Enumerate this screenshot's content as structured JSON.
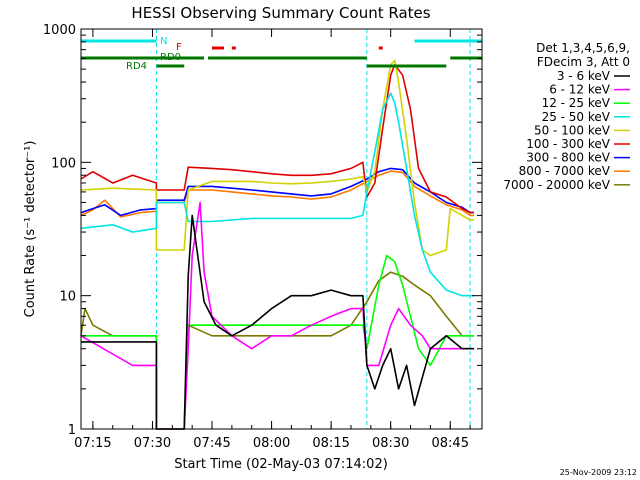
{
  "chart_data": {
    "type": "line",
    "title": "HESSI Observing Summary Count Rates",
    "ylabel": "Count Rate (s⁻¹ detector⁻¹)",
    "xlabel": "Start Time (02-May-03 07:14:02)",
    "y_scale": "log",
    "ylim": [
      1,
      1000
    ],
    "xlim": [
      "07:12",
      "08:53"
    ],
    "x_ticks": [
      {
        "t": "07:15",
        "label": "07:15"
      },
      {
        "t": "07:30",
        "label": "07:30"
      },
      {
        "t": "07:45",
        "label": "07:45"
      },
      {
        "t": "08:00",
        "label": "08:00"
      },
      {
        "t": "08:15",
        "label": "08:15"
      },
      {
        "t": "08:30",
        "label": "08:30"
      },
      {
        "t": "08:45",
        "label": "08:45"
      }
    ],
    "y_ticks": [
      {
        "v": 1,
        "label": "1"
      },
      {
        "v": 10,
        "label": "10"
      },
      {
        "v": 100,
        "label": "100"
      },
      {
        "v": 1000,
        "label": "1000"
      }
    ],
    "footer": "25-Nov-2009 23:12",
    "legend": {
      "header": [
        "Det 1,3,4,5,6,9,",
        "FDecim 3, Att 0"
      ],
      "placement": "right"
    },
    "flags": [
      {
        "label": "N",
        "color": "#00e5e5"
      },
      {
        "label": "F",
        "color": "#e00000"
      },
      {
        "label": "RD0",
        "color": "#007800"
      },
      {
        "label": "RD4",
        "color": "#007800"
      }
    ],
    "flag_bars": [
      {
        "flag": "N",
        "segments": [
          [
            "07:12",
            "07:31"
          ],
          [
            "08:36",
            "08:53"
          ]
        ]
      },
      {
        "flag": "F",
        "segments": [
          [
            "07:45",
            "07:48"
          ],
          [
            "07:50",
            "07:51"
          ],
          [
            "08:27",
            "08:28"
          ]
        ]
      },
      {
        "flag": "RD0",
        "segments": [
          [
            "07:12",
            "07:43"
          ],
          [
            "07:44",
            "08:24"
          ],
          [
            "08:45",
            "08:53"
          ]
        ]
      },
      {
        "flag": "RD4",
        "segments": [
          [
            "07:31",
            "07:38"
          ],
          [
            "08:24",
            "08:44"
          ]
        ]
      }
    ],
    "saa_lines": [
      "07:31",
      "08:24",
      "08:50"
    ],
    "series": [
      {
        "name": "3 - 6 keV",
        "color": "#000000",
        "x": [
          "07:12",
          "07:31",
          "07:31",
          "07:38",
          "07:39",
          "07:40",
          "07:43",
          "07:46",
          "07:50",
          "07:55",
          "08:00",
          "08:05",
          "08:10",
          "08:15",
          "08:20",
          "08:23",
          "08:24",
          "08:26",
          "08:28",
          "08:30",
          "08:32",
          "08:34",
          "08:36",
          "08:40",
          "08:44",
          "08:48",
          "08:50",
          "08:51"
        ],
        "y": [
          4.5,
          4.5,
          1,
          1,
          14,
          40,
          9,
          6,
          5,
          6,
          8,
          10,
          10,
          11,
          10,
          10,
          3,
          2,
          3,
          4,
          2,
          3,
          1.5,
          4,
          5,
          4,
          4,
          4
        ]
      },
      {
        "name": "6 - 12 keV",
        "color": "#ff00ff",
        "x": [
          "07:12",
          "07:25",
          "07:31",
          "07:31",
          "07:38",
          "07:39",
          "07:40",
          "07:42",
          "07:43",
          "07:45",
          "07:50",
          "07:55",
          "08:00",
          "08:05",
          "08:10",
          "08:15",
          "08:20",
          "08:23",
          "08:24",
          "08:27",
          "08:30",
          "08:32",
          "08:35",
          "08:38",
          "08:40",
          "08:44",
          "08:48",
          "08:50",
          "08:51"
        ],
        "y": [
          5,
          3,
          3,
          1,
          1,
          4,
          20,
          50,
          15,
          7,
          5,
          4,
          5,
          5,
          6,
          7,
          8,
          8,
          3,
          3,
          6,
          8,
          6,
          5,
          4,
          4,
          4,
          4,
          4
        ]
      },
      {
        "name": "12 - 25 keV",
        "color": "#00ff00",
        "x": [
          "07:12",
          "07:31",
          "07:31",
          "07:38",
          "07:39",
          "07:45",
          "07:50",
          "07:55",
          "08:00",
          "08:05",
          "08:10",
          "08:15",
          "08:20",
          "08:23",
          "08:24",
          "08:27",
          "08:29",
          "08:31",
          "08:33",
          "08:35",
          "08:37",
          "08:40",
          "08:44",
          "08:48",
          "08:50",
          "08:51"
        ],
        "y": [
          5,
          5,
          1,
          1,
          6,
          6,
          6,
          6,
          6,
          6,
          6,
          6,
          6,
          6,
          4,
          12,
          20,
          18,
          12,
          7,
          4,
          3,
          5,
          5,
          5,
          5
        ]
      },
      {
        "name": "25 - 50 keV",
        "color": "#00e5e5",
        "x": [
          "07:12",
          "07:20",
          "07:25",
          "07:31",
          "07:31",
          "07:38",
          "07:39",
          "07:45",
          "07:50",
          "07:55",
          "08:00",
          "08:05",
          "08:10",
          "08:15",
          "08:20",
          "08:23",
          "08:24",
          "08:26",
          "08:28",
          "08:30",
          "08:31",
          "08:32",
          "08:34",
          "08:36",
          "08:38",
          "08:40",
          "08:44",
          "08:48",
          "08:50",
          "08:51"
        ],
        "y": [
          32,
          34,
          30,
          32,
          50,
          50,
          36,
          36,
          37,
          38,
          38,
          38,
          38,
          38,
          38,
          40,
          60,
          120,
          250,
          330,
          280,
          200,
          90,
          40,
          22,
          15,
          11,
          10,
          10,
          10
        ]
      },
      {
        "name": "50 - 100 keV",
        "color": "#d2d200",
        "x": [
          "07:12",
          "07:20",
          "07:31",
          "07:31",
          "07:38",
          "07:39",
          "07:45",
          "07:50",
          "07:55",
          "08:00",
          "08:05",
          "08:10",
          "08:15",
          "08:20",
          "08:23",
          "08:24",
          "08:26",
          "08:28",
          "08:30",
          "08:31",
          "08:32",
          "08:34",
          "08:36",
          "08:38",
          "08:40",
          "08:44",
          "08:45",
          "08:48",
          "08:50",
          "08:51"
        ],
        "y": [
          62,
          64,
          62,
          22,
          22,
          62,
          72,
          72,
          72,
          70,
          69,
          70,
          72,
          75,
          78,
          60,
          85,
          250,
          540,
          580,
          400,
          150,
          50,
          22,
          20,
          22,
          45,
          40,
          37,
          37
        ]
      },
      {
        "name": "100 - 300 keV",
        "color": "#e00000",
        "x": [
          "07:12",
          "07:15",
          "07:20",
          "07:25",
          "07:31",
          "07:31",
          "07:38",
          "07:39",
          "07:45",
          "07:50",
          "07:55",
          "08:00",
          "08:05",
          "08:10",
          "08:15",
          "08:20",
          "08:23",
          "08:24",
          "08:26",
          "08:28",
          "08:30",
          "08:31",
          "08:33",
          "08:35",
          "08:37",
          "08:40",
          "08:44",
          "08:48",
          "08:50",
          "08:51"
        ],
        "y": [
          75,
          85,
          70,
          80,
          70,
          62,
          62,
          92,
          90,
          88,
          85,
          82,
          80,
          80,
          82,
          90,
          100,
          55,
          70,
          180,
          450,
          540,
          450,
          250,
          90,
          60,
          55,
          45,
          42,
          42
        ]
      },
      {
        "name": "300 - 800 keV",
        "color": "#0000ff",
        "x": [
          "07:12",
          "07:15",
          "07:18",
          "07:22",
          "07:27",
          "07:31",
          "07:31",
          "07:38",
          "07:39",
          "07:45",
          "07:50",
          "07:55",
          "08:00",
          "08:05",
          "08:10",
          "08:15",
          "08:20",
          "08:24",
          "08:27",
          "08:30",
          "08:33",
          "08:36",
          "08:40",
          "08:44",
          "08:48",
          "08:50",
          "08:51"
        ],
        "y": [
          42,
          45,
          48,
          40,
          44,
          45,
          52,
          52,
          66,
          66,
          64,
          62,
          60,
          58,
          56,
          58,
          66,
          75,
          85,
          90,
          88,
          70,
          60,
          50,
          46,
          42,
          42
        ]
      },
      {
        "name": "800 - 7000 keV",
        "color": "#ff7800",
        "x": [
          "07:12",
          "07:15",
          "07:18",
          "07:22",
          "07:27",
          "07:31",
          "07:31",
          "07:38",
          "07:39",
          "07:45",
          "07:50",
          "07:55",
          "08:00",
          "08:05",
          "08:10",
          "08:15",
          "08:20",
          "08:24",
          "08:27",
          "08:30",
          "08:33",
          "08:36",
          "08:40",
          "08:44",
          "08:48",
          "08:50",
          "08:51"
        ],
        "y": [
          40,
          44,
          52,
          39,
          42,
          43,
          50,
          50,
          62,
          62,
          60,
          58,
          56,
          55,
          53,
          55,
          62,
          72,
          80,
          86,
          84,
          66,
          56,
          48,
          44,
          40,
          40
        ]
      },
      {
        "name": "7000 - 20000 keV",
        "color": "#7a7a00",
        "x": [
          "07:12",
          "07:13",
          "07:15",
          "07:20",
          "07:25",
          "07:30",
          "07:31",
          "07:31",
          "07:38",
          "07:39",
          "07:45",
          "07:50",
          "07:55",
          "08:00",
          "08:05",
          "08:10",
          "08:15",
          "08:20",
          "08:24",
          "08:27",
          "08:30",
          "08:33",
          "08:36",
          "08:40",
          "08:44",
          "08:48",
          "08:50",
          "08:51"
        ],
        "y": [
          5,
          8,
          6,
          5,
          5,
          5,
          5,
          1,
          1,
          6,
          5,
          5,
          5,
          5,
          5,
          5,
          5,
          6,
          9,
          13,
          15,
          14,
          12,
          10,
          7,
          5,
          5,
          5
        ]
      }
    ]
  }
}
